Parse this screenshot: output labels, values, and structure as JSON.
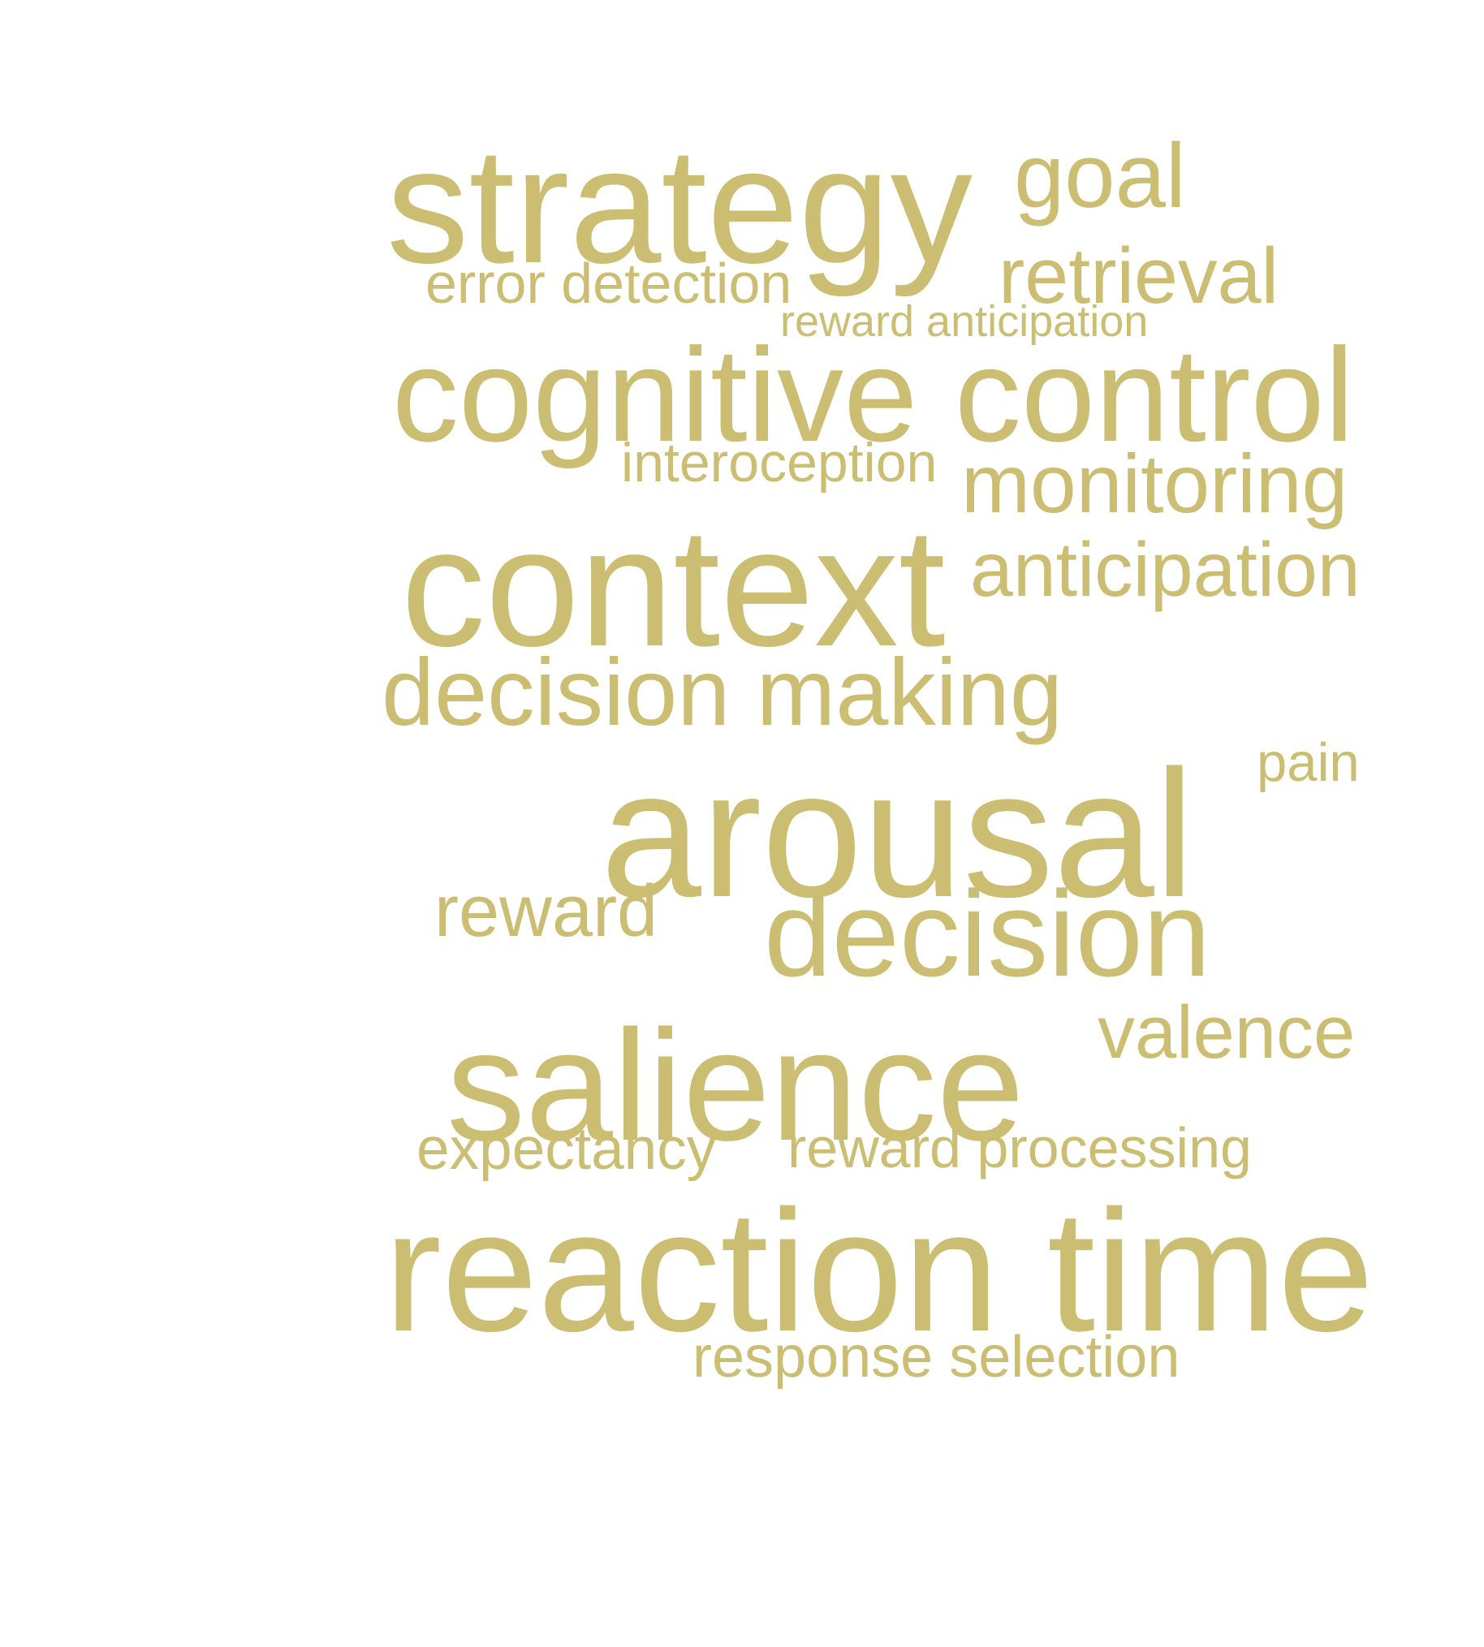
{
  "word_color": "#cbbd72",
  "background_color": "#ffffff",
  "words": {
    "strategy": "strategy",
    "goal": "goal",
    "error_detection": "error detection",
    "retrieval": "retrieval",
    "reward_anticipation": "reward anticipation",
    "cognitive_control": "cognitive control",
    "interoception": "interoception",
    "monitoring": "monitoring",
    "context": "context",
    "anticipation": "anticipation",
    "decision_making": "decision making",
    "pain": "pain",
    "arousal": "arousal",
    "reward": "reward",
    "decision": "decision",
    "valence": "valence",
    "salience": "salience",
    "expectancy": "expectancy",
    "reward_processing": "reward processing",
    "reaction_time": "reaction time",
    "response_selection": "response selection"
  }
}
